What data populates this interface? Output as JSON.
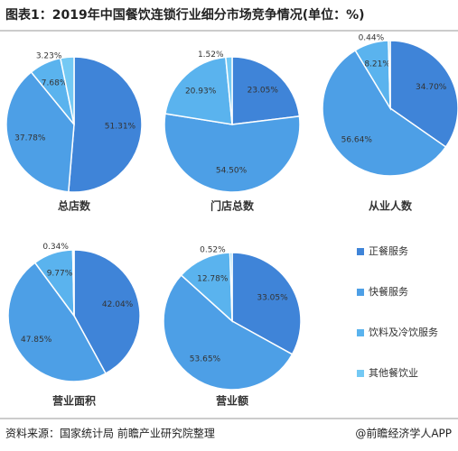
{
  "title": "图表1：2019年中国餐饮连锁行业细分市场竞争情况(单位：%)",
  "chart_data": [
    {
      "type": "pie",
      "title": "总店数",
      "categories": [
        "正餐服务",
        "快餐服务",
        "饮料及冷饮服务",
        "其他餐饮业"
      ],
      "values": [
        51.31,
        37.78,
        7.68,
        3.23
      ],
      "value_labels": [
        "51.31%",
        "37.78%",
        "7.68%",
        "3.23%"
      ],
      "colors": [
        "#3f84d8",
        "#4d9fe6",
        "#5ab3ee",
        "#74c9f4"
      ]
    },
    {
      "type": "pie",
      "title": "门店总数",
      "categories": [
        "正餐服务",
        "快餐服务",
        "饮料及冷饮服务",
        "其他餐饮业"
      ],
      "values": [
        23.05,
        54.5,
        20.93,
        1.52
      ],
      "value_labels": [
        "23.05%",
        "54.50%",
        "20.93%",
        "1.52%"
      ],
      "colors": [
        "#3f84d8",
        "#4d9fe6",
        "#5ab3ee",
        "#74c9f4"
      ]
    },
    {
      "type": "pie",
      "title": "从业人数",
      "categories": [
        "正餐服务",
        "快餐服务",
        "饮料及冷饮服务",
        "其他餐饮业"
      ],
      "values": [
        34.7,
        56.64,
        8.21,
        0.44
      ],
      "value_labels": [
        "34.70%",
        "56.64%",
        "8.21%",
        "0.44%"
      ],
      "colors": [
        "#3f84d8",
        "#4d9fe6",
        "#5ab3ee",
        "#74c9f4"
      ]
    },
    {
      "type": "pie",
      "title": "营业面积",
      "categories": [
        "正餐服务",
        "快餐服务",
        "饮料及冷饮服务",
        "其他餐饮业"
      ],
      "values": [
        42.04,
        47.85,
        9.77,
        0.34
      ],
      "value_labels": [
        "42.04%",
        "47.85%",
        "9.77%",
        "0.34%"
      ],
      "colors": [
        "#3f84d8",
        "#4d9fe6",
        "#5ab3ee",
        "#74c9f4"
      ]
    },
    {
      "type": "pie",
      "title": "营业额",
      "categories": [
        "正餐服务",
        "快餐服务",
        "饮料及冷饮服务",
        "其他餐饮业"
      ],
      "values": [
        33.05,
        53.65,
        12.78,
        0.52
      ],
      "value_labels": [
        "33.05%",
        "53.65%",
        "12.78%",
        "0.52%"
      ],
      "colors": [
        "#3f84d8",
        "#4d9fe6",
        "#5ab3ee",
        "#74c9f4"
      ]
    }
  ],
  "source": "资料来源：国家统计局 前瞻产业研究院整理",
  "brand": "@前瞻经济学人APP"
}
